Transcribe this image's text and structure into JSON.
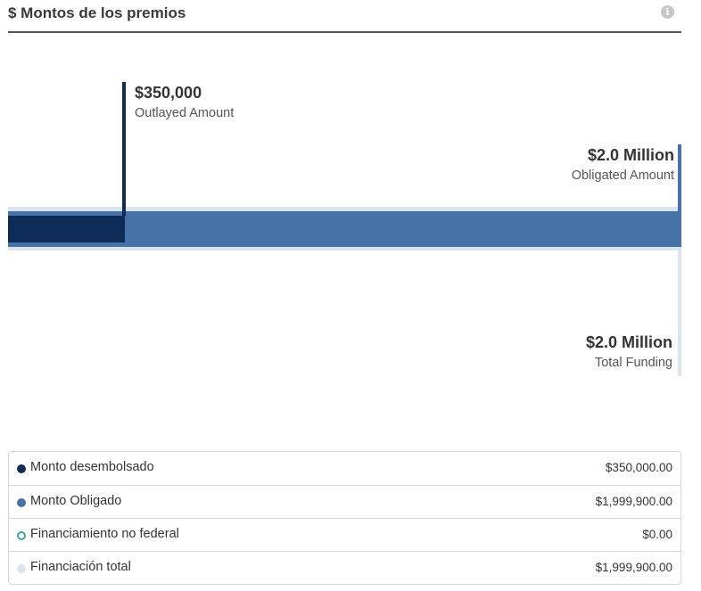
{
  "header": {
    "title": "$ Montos de los premios",
    "info_icon": "info-icon"
  },
  "chart": {
    "outlayed": {
      "value": "$350,000",
      "caption": "Outlayed Amount",
      "color": "#0f2c59"
    },
    "obligated": {
      "value": "$2.0 Million",
      "caption": "Obligated Amount",
      "color": "#4672a8"
    },
    "total": {
      "value": "$2.0 Million",
      "caption": "Total Funding",
      "color": "#dbe5ef"
    }
  },
  "legend": {
    "rows": [
      {
        "label": "Monto desembolsado",
        "value": "$350,000.00",
        "color": "#0f2c59",
        "style": "filled"
      },
      {
        "label": "Monto Obligado",
        "value": "$1,999,900.00",
        "color": "#4672a8",
        "style": "filled"
      },
      {
        "label": "Financiamiento no federal",
        "value": "$0.00",
        "color": "#3ca6a6",
        "style": "outline"
      },
      {
        "label": "Financiación total",
        "value": "$1,999,900.00",
        "color": "#dbe5ef",
        "style": "filled"
      }
    ]
  }
}
